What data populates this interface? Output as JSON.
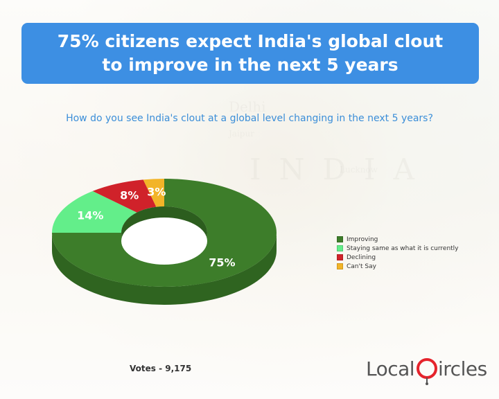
{
  "header": {
    "title": "75% citizens expect India's global clout to improve in the next 5 years"
  },
  "question": "How do you see India's clout at a global level changing in the next 5 years?",
  "footer": {
    "votes": "Votes - 9,175",
    "brand_part1": "Local",
    "brand_part2": "ircles"
  },
  "colors": {
    "title_bg": "#3d8fe3",
    "question_text": "#3b8ed8",
    "improving": "#3d7d2a",
    "staying_same": "#63ee8a",
    "declining": "#d0222a",
    "cant_say": "#f2b428",
    "brand_red": "#e5232c"
  },
  "chart_data": {
    "type": "pie",
    "style": "3d-donut",
    "categories": [
      "Improving",
      "Staying same as what it is currently",
      "Declining",
      "Can't Say"
    ],
    "values": [
      75,
      14,
      8,
      3
    ],
    "labels": [
      "75%",
      "14%",
      "8%",
      "3%"
    ],
    "legend_position": "right"
  }
}
